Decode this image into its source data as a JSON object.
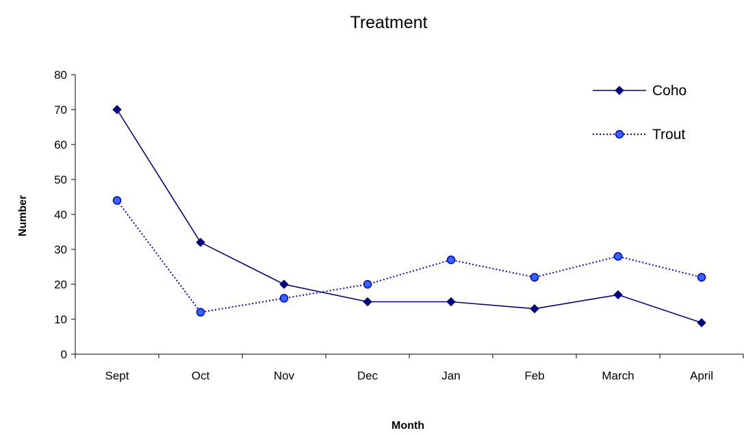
{
  "chart_data": {
    "type": "line",
    "title": "Treatment",
    "xlabel": "Month",
    "ylabel": "Number",
    "categories": [
      "Sept",
      "Oct",
      "Nov",
      "Dec",
      "Jan",
      "Feb",
      "March",
      "April"
    ],
    "ylim": [
      0,
      80
    ],
    "yticks": [
      "0",
      "10",
      "20",
      "30",
      "40",
      "50",
      "60",
      "70",
      "80"
    ],
    "grid": false,
    "legend_position": "top-right",
    "series": [
      {
        "name": "Coho",
        "values": [
          70,
          32,
          20,
          15,
          15,
          13,
          17,
          9
        ],
        "color": "#000080",
        "line_style": "solid",
        "marker": "diamond"
      },
      {
        "name": "Trout",
        "values": [
          44,
          12,
          16,
          20,
          27,
          22,
          28,
          22
        ],
        "color": "#0000CC",
        "marker_fill": "#3366FF",
        "line_style": "dotted",
        "marker": "circle"
      }
    ]
  }
}
